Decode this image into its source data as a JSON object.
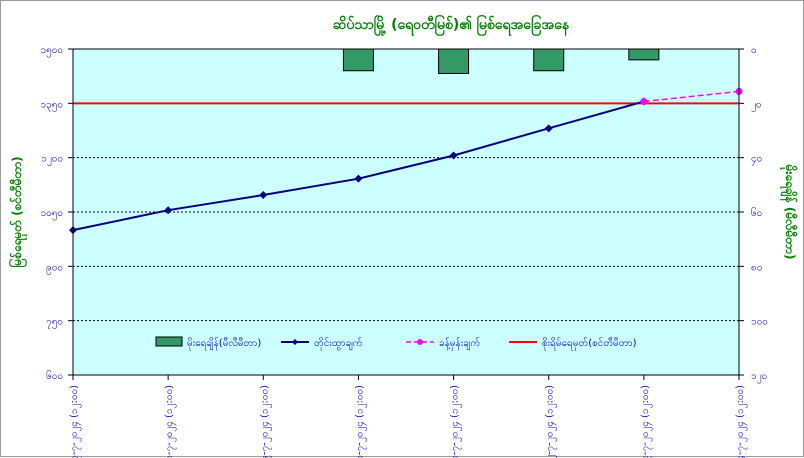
{
  "chart_data": {
    "type": "line",
    "title": "ဆိပ်သာမြို့ (ရေဝတီမြစ်)၏ မြစ်ရေအခြေအနေ",
    "ylabel": "မြစ်ရေမှတ် (စင်တီမီတာ)",
    "y2label": "မိုးရေချိန် (မီလီမီတာ)",
    "categories": [
      "၇-၇-၂၀၂၄ (၁၂:၀၀)",
      "၈-၇-၂၀၂၄ (၁၂:၀၀)",
      "၉-၇-၂၀၂၄ (၁၂:၀၀)",
      "၁၀-၇-၂၀၂၄ (၁၂:၀၀)",
      "၁၁-၇-၂၀၂၄ (၁၂:၀၀)",
      "၁၂-၇-၂၀၂၄ (၁၂:၀၀)",
      "၁၃-၇-၂၀၂၄ (၁၂:၀၀)",
      "၁၄-၇-၂၀၂၄ (၁၂:၀၀)"
    ],
    "ylim": [
      600,
      1500
    ],
    "yticks": [
      600,
      750,
      900,
      1050,
      1200,
      1350,
      1500
    ],
    "yticklabels": [
      "၆၀၀",
      "၇၅၀",
      "၉၀၀",
      "၁၀၅၀",
      "၁၂၀၀",
      "၁၃၅၀",
      "၁၅၀၀"
    ],
    "y2lim": [
      0,
      120
    ],
    "y2ticks": [
      0,
      20,
      40,
      60,
      80,
      100,
      120
    ],
    "y2ticklabels": [
      "၀",
      "၂၀",
      "၄၀",
      "၆၀",
      "၈၀",
      "၁၀၀",
      "၁၂၀"
    ],
    "grid": true,
    "legend_position": "bottom",
    "series": [
      {
        "name": "မိုးရေချိန်(မီလီမီတာ)",
        "kind": "bar",
        "axis": "y2",
        "color": "#339966",
        "values": [
          0,
          0,
          0,
          8,
          9,
          8,
          4,
          0
        ]
      },
      {
        "name": "တိုင်းထွာချက်",
        "kind": "line",
        "axis": "y",
        "color": "#000080",
        "values": [
          1000,
          1055,
          1097,
          1142,
          1206,
          1281,
          1355,
          null
        ]
      },
      {
        "name": "ခန့်မှန်းချက်",
        "kind": "dashed-line",
        "axis": "y",
        "color": "#ff00ff",
        "values": [
          null,
          null,
          null,
          null,
          null,
          null,
          1355,
          1383
        ]
      },
      {
        "name": "စိုးရိမ်ရေမှတ်(စင်တီမီတာ)",
        "kind": "hline",
        "axis": "y",
        "color": "#ff0000",
        "value": 1350
      }
    ]
  }
}
